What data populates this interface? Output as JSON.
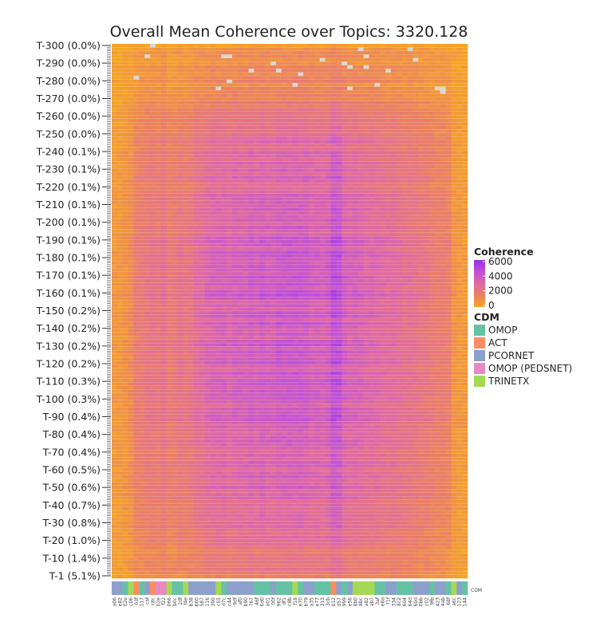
{
  "chart_data": {
    "type": "heatmap",
    "title": "Overall Mean Coherence over Topics: 3320.128",
    "y_tick_labels": [
      "T-300 (0.0%)",
      "T-290 (0.0%)",
      "T-280 (0.0%)",
      "T-270 (0.0%)",
      "T-260 (0.0%)",
      "T-250 (0.0%)",
      "T-240 (0.1%)",
      "T-230 (0.1%)",
      "T-220 (0.1%)",
      "T-210 (0.1%)",
      "T-200 (0.1%)",
      "T-190 (0.1%)",
      "T-180 (0.1%)",
      "T-170 (0.1%)",
      "T-160 (0.1%)",
      "T-150 (0.2%)",
      "T-140 (0.2%)",
      "T-130 (0.2%)",
      "T-120 (0.2%)",
      "T-110 (0.3%)",
      "T-100 (0.3%)",
      "T-90 (0.4%)",
      "T-80 (0.4%)",
      "T-70 (0.4%)",
      "T-60 (0.5%)",
      "T-50 (0.6%)",
      "T-40 (0.7%)",
      "T-30 (0.8%)",
      "T-20 (1.0%)",
      "T-10 (1.4%)",
      "T-1 (5.1%)"
    ],
    "x_tick_labels": [
      "a06",
      "e82",
      "02e",
      "c06",
      "03f",
      "117",
      "caf",
      "c8c",
      "02e",
      "f22",
      "066",
      "b0c",
      "2df",
      "f4e",
      "b38",
      "660",
      "587",
      "116",
      "390",
      "c55",
      "d7c",
      "c44",
      "9df",
      "af0",
      "b90",
      "767",
      "46f",
      "6d0",
      "a01",
      "00f",
      "962",
      "df1",
      "c8b",
      "f18",
      "e70",
      "b79",
      "a35",
      "e77",
      "313",
      "3cb",
      "012",
      "d57",
      "999",
      "e56",
      "8b0",
      "8bc",
      "a82",
      "ab7",
      "3af",
      "e8a",
      "71f",
      "334",
      "8c2",
      "604",
      "64d",
      "60d",
      "0bb",
      "c02",
      "9fb",
      "423",
      "4ab",
      "68f",
      "a6c",
      "123",
      "144"
    ],
    "cdm_strip_label": "CDM",
    "colorbar": {
      "title": "Coherence",
      "range": [
        0,
        6000
      ],
      "ticks": [
        "6000",
        "4000",
        "2000",
        "0"
      ],
      "colors": [
        "#f5a623",
        "#eb8060",
        "#e06aa0",
        "#c050d8",
        "#9b30e6"
      ]
    },
    "legend": {
      "title": "CDM",
      "entries": [
        {
          "label": "OMOP",
          "color": "#66c2a5"
        },
        {
          "label": "ACT",
          "color": "#fc8d62"
        },
        {
          "label": "PCORNET",
          "color": "#8da0cb"
        },
        {
          "label": "OMOP (PEDSNET)",
          "color": "#e78ac3"
        },
        {
          "label": "TRINETX",
          "color": "#a6d854"
        }
      ]
    },
    "cdm_per_column": [
      "PCORNET",
      "PCORNET",
      "OMOP",
      "TRINETX",
      "ACT",
      "OMOP",
      "PCORNET",
      "ACT",
      "OMOP (PEDSNET)",
      "OMOP (PEDSNET)",
      "TRINETX",
      "OMOP",
      "OMOP",
      "TRINETX",
      "PCORNET",
      "PCORNET",
      "PCORNET",
      "PCORNET",
      "PCORNET",
      "TRINETX",
      "OMOP",
      "PCORNET",
      "PCORNET",
      "PCORNET",
      "PCORNET",
      "PCORNET",
      "OMOP",
      "OMOP",
      "OMOP",
      "PCORNET",
      "OMOP",
      "OMOP",
      "OMOP",
      "TRINETX",
      "OMOP",
      "PCORNET",
      "PCORNET",
      "OMOP",
      "OMOP",
      "OMOP",
      "ACT",
      "PCORNET",
      "OMOP",
      "PCORNET",
      "TRINETX",
      "TRINETX",
      "TRINETX",
      "TRINETX",
      "OMOP",
      "OMOP",
      "PCORNET",
      "PCORNET",
      "OMOP",
      "OMOP",
      "OMOP",
      "PCORNET",
      "PCORNET",
      "PCORNET",
      "OMOP",
      "PCORNET",
      "PCORNET",
      "OMOP",
      "TRINETX",
      "PCORNET",
      "OMOP"
    ]
  }
}
